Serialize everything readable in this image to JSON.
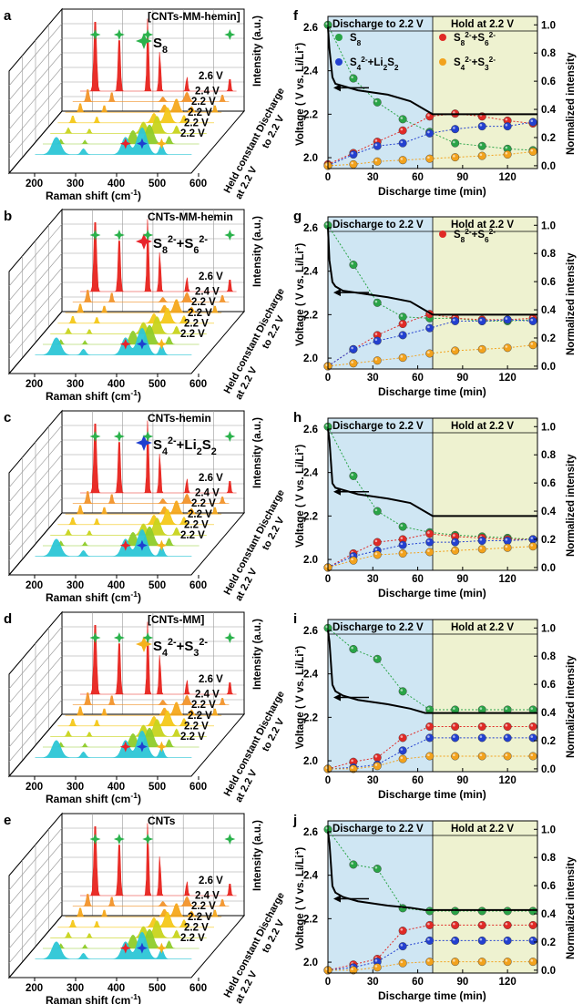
{
  "chart_data": {
    "type": "figure",
    "raman_panels": [
      {
        "letter": "a",
        "sample": "[CNTs-MM-hemin]",
        "species": "S8",
        "legend": "S",
        "legend_sub": "8",
        "legend_marker_color": "#2bb24c"
      },
      {
        "letter": "b",
        "sample": "CNTs-MM-hemin",
        "species": "S8 2- + S6 2-",
        "legend": "S82-+S62-",
        "legend_marker_color": "#e8232a"
      },
      {
        "letter": "c",
        "sample": "CNTs-hemin",
        "species": "S4 2- + Li2S2",
        "legend": "S42-+Li2S2",
        "legend_marker_color": "#1f3fd0"
      },
      {
        "letter": "d",
        "sample": "[CNTs-MM]",
        "species": "S4 2- + S3 2-",
        "legend": "S42-+S32-",
        "legend_marker_color": "#f5b21c"
      },
      {
        "letter": "e",
        "sample": "CNTs",
        "species": "",
        "legend": "",
        "legend_marker_color": ""
      }
    ],
    "raman_common": {
      "xlabel": "Raman shift (cm",
      "xlabel_sup": "-1",
      "xlabel_end": ")",
      "xticks": [
        "200",
        "300",
        "400",
        "500",
        "600"
      ],
      "zlabel": "Intensity (a.u.)",
      "trace_labels": [
        "2.6 V",
        "2.4 V",
        "2.2 V",
        "2.2 V",
        "2.2 V",
        "2.2 V"
      ],
      "trace_colors": [
        "#e8231d",
        "#f2932a",
        "#f6a81c",
        "#f4c81a",
        "#c8d41c",
        "#8fcc2a",
        "#2cc6d6"
      ],
      "side_label_1": "Held constant Discharge",
      "side_label_2": "to 2.2 V",
      "side_label_3": "at 2.2 V"
    },
    "kinetic_panels": [
      {
        "letter": "f",
        "voltage": {
          "t": [
            0,
            1,
            3,
            5,
            10,
            20,
            40,
            55,
            65,
            70,
            140
          ],
          "v": [
            2.6,
            2.5,
            2.37,
            2.34,
            2.33,
            2.31,
            2.29,
            2.26,
            2.22,
            2.2,
            2.2
          ]
        },
        "series": {
          "S8": [
            1.0,
            0.62,
            0.45,
            0.33,
            0.24,
            0.16,
            0.14,
            0.12,
            0.11
          ],
          "S8S6": [
            0.01,
            0.09,
            0.17,
            0.25,
            0.35,
            0.37,
            0.35,
            0.32,
            0.3
          ],
          "S4Li2S2": [
            0.0,
            0.08,
            0.14,
            0.16,
            0.23,
            0.26,
            0.28,
            0.28,
            0.31
          ],
          "S4S3": [
            0.0,
            0.01,
            0.03,
            0.04,
            0.05,
            0.06,
            0.07,
            0.08,
            0.1
          ]
        }
      },
      {
        "letter": "g",
        "voltage": {
          "t": [
            0,
            1,
            3,
            5,
            10,
            20,
            40,
            55,
            65,
            70,
            140
          ],
          "v": [
            2.6,
            2.45,
            2.35,
            2.33,
            2.31,
            2.3,
            2.28,
            2.26,
            2.22,
            2.2,
            2.2
          ]
        },
        "series": {
          "S8": [
            1.0,
            0.72,
            0.45,
            0.35,
            0.34,
            0.34,
            0.32,
            0.32,
            0.33
          ],
          "S8S6": [
            0.0,
            0.12,
            0.22,
            0.3,
            0.37,
            0.34,
            0.33,
            0.33,
            0.34
          ],
          "S4Li2S2": [
            0.0,
            0.12,
            0.18,
            0.22,
            0.27,
            0.32,
            0.32,
            0.33,
            0.32
          ],
          "S4S3": [
            0.0,
            0.02,
            0.04,
            0.06,
            0.09,
            0.11,
            0.12,
            0.13,
            0.15
          ]
        }
      },
      {
        "letter": "h",
        "voltage": {
          "t": [
            0,
            1,
            3,
            5,
            10,
            20,
            40,
            55,
            65,
            70,
            140
          ],
          "v": [
            2.6,
            2.55,
            2.35,
            2.33,
            2.32,
            2.3,
            2.28,
            2.26,
            2.22,
            2.2,
            2.2
          ]
        },
        "series": {
          "S8": [
            1.0,
            0.65,
            0.4,
            0.29,
            0.25,
            0.23,
            0.22,
            0.21,
            0.2
          ],
          "S8S6": [
            0.0,
            0.1,
            0.18,
            0.2,
            0.24,
            0.22,
            0.21,
            0.2,
            0.2
          ],
          "S4Li2S2": [
            0.0,
            0.08,
            0.12,
            0.16,
            0.18,
            0.18,
            0.19,
            0.19,
            0.2
          ],
          "S4S3": [
            0.0,
            0.05,
            0.09,
            0.1,
            0.11,
            0.12,
            0.13,
            0.14,
            0.15
          ]
        }
      },
      {
        "letter": "i",
        "voltage": {
          "t": [
            0,
            1,
            3,
            5,
            10,
            20,
            40,
            55,
            65,
            70,
            140
          ],
          "v": [
            2.6,
            2.55,
            2.35,
            2.32,
            2.3,
            2.28,
            2.26,
            2.24,
            2.22,
            2.22,
            2.22
          ]
        },
        "series": {
          "S8": [
            1.0,
            0.85,
            0.78,
            0.55,
            0.42,
            0.42,
            0.42,
            0.42,
            0.42
          ],
          "S8S6": [
            0.0,
            0.05,
            0.08,
            0.22,
            0.3,
            0.3,
            0.3,
            0.3,
            0.3
          ],
          "S4Li2S2": [
            0.0,
            0.01,
            0.03,
            0.13,
            0.22,
            0.22,
            0.22,
            0.22,
            0.22
          ],
          "S4S3": [
            0.0,
            0.0,
            0.02,
            0.07,
            0.09,
            0.09,
            0.09,
            0.09,
            0.09
          ]
        }
      },
      {
        "letter": "j",
        "voltage": {
          "t": [
            0,
            1,
            3,
            5,
            10,
            20,
            40,
            55,
            65,
            70,
            140
          ],
          "v": [
            2.6,
            2.55,
            2.35,
            2.32,
            2.3,
            2.28,
            2.26,
            2.25,
            2.24,
            2.24,
            2.24
          ]
        },
        "series": {
          "S8": [
            1.0,
            0.75,
            0.72,
            0.44,
            0.42,
            0.42,
            0.42,
            0.42,
            0.42
          ],
          "S8S6": [
            0.0,
            0.04,
            0.08,
            0.28,
            0.32,
            0.32,
            0.32,
            0.32,
            0.32
          ],
          "S4Li2S2": [
            0.0,
            0.02,
            0.06,
            0.17,
            0.21,
            0.21,
            0.21,
            0.21,
            0.21
          ],
          "S4S3": [
            0.0,
            0.0,
            0.02,
            0.05,
            0.06,
            0.06,
            0.06,
            0.06,
            0.06
          ]
        }
      }
    ],
    "kinetic_common": {
      "time": [
        0,
        17,
        33,
        50,
        68,
        85,
        103,
        120,
        137
      ],
      "xlabel": "Discharge time (min)",
      "ylabel_left": "Voltage ( V vs. Li/Li",
      "ylabel_left_sup": "+",
      "ylabel_left_end": ")",
      "ylabel_right": "Normalized intensity",
      "xticks": [
        "0",
        "30",
        "60",
        "90",
        "120"
      ],
      "xlim": [
        0,
        140
      ],
      "yticks_left": [
        "2.0",
        "2.2",
        "2.4",
        "2.6"
      ],
      "ylim_left": [
        1.95,
        2.65
      ],
      "yticks_right": [
        "0.0",
        "0.2",
        "0.4",
        "0.6",
        "0.8",
        "1.0"
      ],
      "ylim_right": [
        -0.02,
        1.06
      ],
      "region_1": "Discharge to 2.2 V",
      "region_2": "Hold  at 2.2 V",
      "region_split_time": 70,
      "legend_S8": "S",
      "legend_S8_sub": "8",
      "legend_S8S6": "S82-+S62-",
      "legend_S4Li2S2": "S42-+Li2S2",
      "legend_S4S3": "S42-+S32-",
      "colors": {
        "S8": "#2aa447",
        "S8S6": "#e02a26",
        "S4Li2S2": "#2340d0",
        "S4S3": "#f2a21d",
        "region1": "#cfe6f3",
        "region2": "#eef2d0"
      }
    }
  }
}
